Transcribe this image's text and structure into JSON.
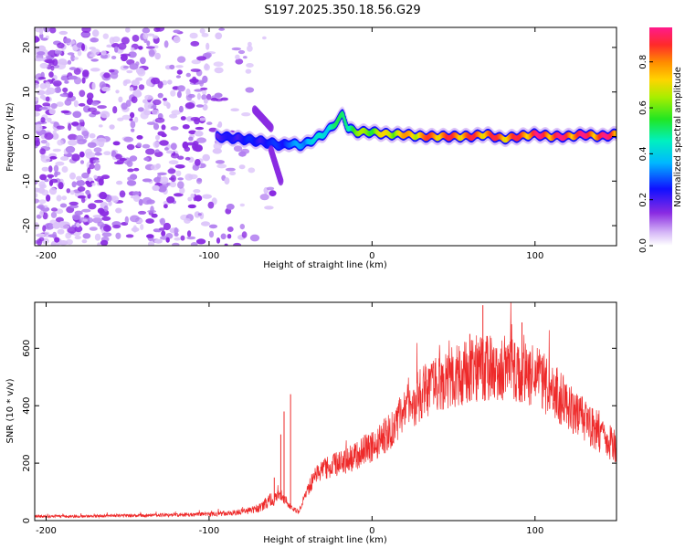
{
  "chart_data": [
    {
      "type": "heatmap",
      "title": "S197.2025.350.18.56.G29",
      "xlabel": "Height of straight line (km)",
      "ylabel": "Frequency (Hz)",
      "xlim": [
        -207,
        150
      ],
      "ylim": [
        -24.5,
        24.5
      ],
      "x_ticks": [
        -200,
        -100,
        0,
        100
      ],
      "y_ticks": [
        -20,
        -10,
        0,
        10,
        20
      ],
      "colorbar": {
        "label": "Normalized spectral amplitude",
        "range": [
          0,
          0.95
        ],
        "ticks": [
          0.0,
          0.2,
          0.4,
          0.6,
          0.8
        ]
      },
      "ridge": {
        "x": [
          -95,
          -80,
          -70,
          -62,
          -55,
          -50,
          -45,
          -40,
          -35,
          -30,
          -25,
          -20,
          -18,
          -15,
          -10,
          0,
          10,
          20,
          30,
          40,
          50,
          60,
          70,
          80,
          90,
          100,
          110,
          120,
          130,
          140,
          150
        ],
        "freq": [
          0,
          -0.5,
          -1,
          -1.5,
          -2,
          -1.5,
          -2,
          -1.5,
          -0.5,
          0.5,
          2,
          4,
          5,
          2,
          1,
          1,
          0.5,
          0.5,
          0,
          0,
          0,
          0,
          0.5,
          -0.5,
          0,
          0.5,
          0,
          0,
          0.5,
          0,
          0.5
        ],
        "amplitude": [
          0.2,
          0.25,
          0.25,
          0.25,
          0.3,
          0.3,
          0.35,
          0.4,
          0.4,
          0.45,
          0.5,
          0.5,
          0.5,
          0.55,
          0.6,
          0.65,
          0.7,
          0.75,
          0.8,
          0.85,
          0.85,
          0.85,
          0.85,
          0.85,
          0.85,
          0.9,
          0.9,
          0.9,
          0.9,
          0.9,
          0.9
        ]
      },
      "noise_region": [
        -207,
        -60
      ]
    },
    {
      "type": "line",
      "xlabel": "Height of straight line (km)",
      "ylabel": "SNR (10 * v/v)",
      "xlim": [
        -207,
        150
      ],
      "ylim": [
        0,
        760
      ],
      "x_ticks": [
        -200,
        -100,
        0,
        100
      ],
      "y_ticks": [
        0,
        200,
        400,
        600
      ],
      "color": "#ee2a2a",
      "envelope": {
        "x": [
          -207,
          -180,
          -150,
          -120,
          -100,
          -90,
          -80,
          -70,
          -65,
          -60,
          -56,
          -52,
          -48,
          -45,
          -40,
          -35,
          -30,
          -20,
          -10,
          0,
          10,
          20,
          30,
          40,
          50,
          60,
          70,
          80,
          90,
          100,
          110,
          120,
          130,
          140,
          150
        ],
        "y": [
          15,
          15,
          17,
          20,
          22,
          25,
          30,
          40,
          60,
          80,
          90,
          60,
          40,
          30,
          100,
          160,
          180,
          200,
          225,
          260,
          310,
          380,
          440,
          480,
          505,
          520,
          530,
          530,
          520,
          500,
          460,
          400,
          350,
          300,
          255
        ]
      },
      "spikes": [
        {
          "x": -60,
          "y": 150
        },
        {
          "x": -56,
          "y": 300
        },
        {
          "x": -54,
          "y": 380
        },
        {
          "x": -50,
          "y": 440
        },
        {
          "x": 60,
          "y": 650
        },
        {
          "x": 68,
          "y": 750
        },
        {
          "x": 92,
          "y": 690
        }
      ]
    }
  ]
}
